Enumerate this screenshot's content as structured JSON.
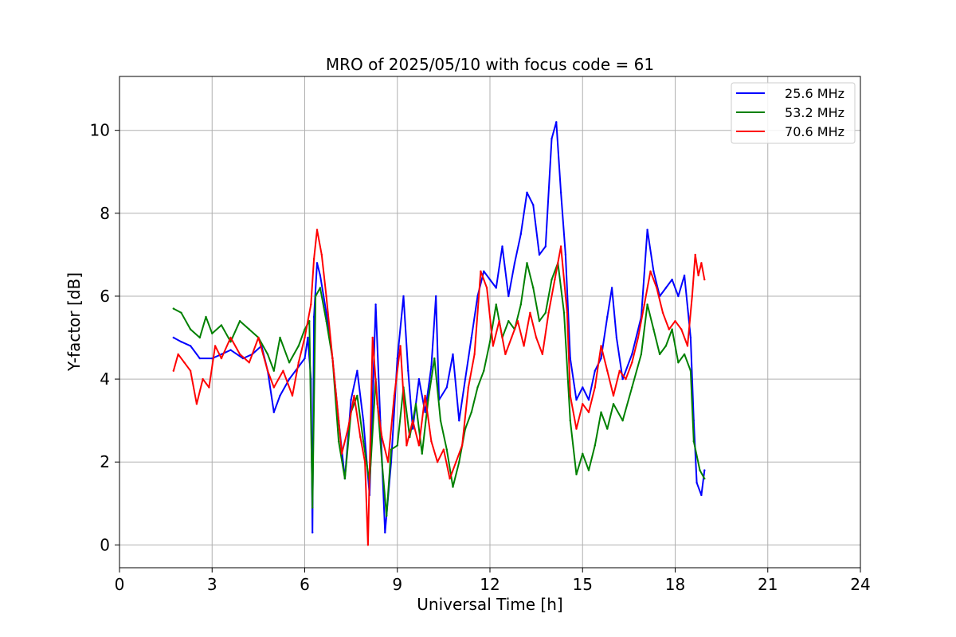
{
  "chart_data": {
    "type": "line",
    "title": "MRO of 2025/05/10 with focus code = 61",
    "xlabel": "Universal Time [h]",
    "ylabel": "Y-factor [dB]",
    "xlim": [
      0,
      24
    ],
    "ylim": [
      -0.55,
      11.3
    ],
    "xticks": [
      0,
      3,
      6,
      9,
      12,
      15,
      18,
      21,
      24
    ],
    "yticks": [
      0,
      2,
      4,
      6,
      8,
      10
    ],
    "grid": true,
    "legend_position": "top-right",
    "series": [
      {
        "name": "25.6 MHz",
        "color": "#0000ff",
        "points": [
          [
            1.75,
            5.0
          ],
          [
            2.0,
            4.9
          ],
          [
            2.3,
            4.8
          ],
          [
            2.6,
            4.5
          ],
          [
            3.0,
            4.5
          ],
          [
            3.3,
            4.6
          ],
          [
            3.6,
            4.7
          ],
          [
            4.0,
            4.5
          ],
          [
            4.3,
            4.6
          ],
          [
            4.6,
            4.8
          ],
          [
            4.8,
            4.2
          ],
          [
            5.0,
            3.2
          ],
          [
            5.2,
            3.6
          ],
          [
            5.5,
            4.0
          ],
          [
            5.8,
            4.3
          ],
          [
            6.0,
            4.5
          ],
          [
            6.1,
            5.0
          ],
          [
            6.2,
            4.0
          ],
          [
            6.25,
            0.3
          ],
          [
            6.3,
            5.5
          ],
          [
            6.4,
            6.8
          ],
          [
            6.5,
            6.5
          ],
          [
            6.7,
            5.6
          ],
          [
            6.9,
            4.5
          ],
          [
            7.1,
            3.0
          ],
          [
            7.3,
            1.6
          ],
          [
            7.5,
            3.5
          ],
          [
            7.7,
            4.2
          ],
          [
            7.9,
            3.0
          ],
          [
            8.1,
            1.2
          ],
          [
            8.3,
            5.8
          ],
          [
            8.45,
            3.0
          ],
          [
            8.6,
            0.3
          ],
          [
            8.8,
            2.0
          ],
          [
            9.0,
            4.5
          ],
          [
            9.2,
            6.0
          ],
          [
            9.35,
            4.2
          ],
          [
            9.5,
            2.8
          ],
          [
            9.7,
            4.0
          ],
          [
            9.9,
            3.2
          ],
          [
            10.1,
            4.3
          ],
          [
            10.25,
            6.0
          ],
          [
            10.35,
            3.5
          ],
          [
            10.6,
            3.8
          ],
          [
            10.8,
            4.6
          ],
          [
            11.0,
            3.0
          ],
          [
            11.2,
            4.0
          ],
          [
            11.4,
            5.0
          ],
          [
            11.6,
            6.0
          ],
          [
            11.8,
            6.6
          ],
          [
            12.0,
            6.4
          ],
          [
            12.2,
            6.2
          ],
          [
            12.4,
            7.2
          ],
          [
            12.6,
            6.0
          ],
          [
            12.8,
            6.8
          ],
          [
            13.0,
            7.5
          ],
          [
            13.2,
            8.5
          ],
          [
            13.4,
            8.2
          ],
          [
            13.6,
            7.0
          ],
          [
            13.8,
            7.2
          ],
          [
            14.0,
            9.8
          ],
          [
            14.15,
            10.2
          ],
          [
            14.3,
            8.5
          ],
          [
            14.45,
            7.0
          ],
          [
            14.6,
            4.5
          ],
          [
            14.8,
            3.5
          ],
          [
            15.0,
            3.8
          ],
          [
            15.2,
            3.5
          ],
          [
            15.4,
            4.2
          ],
          [
            15.6,
            4.5
          ],
          [
            15.8,
            5.5
          ],
          [
            15.95,
            6.2
          ],
          [
            16.1,
            5.0
          ],
          [
            16.3,
            4.0
          ],
          [
            16.6,
            4.6
          ],
          [
            16.9,
            5.5
          ],
          [
            17.1,
            7.6
          ],
          [
            17.3,
            6.6
          ],
          [
            17.5,
            6.0
          ],
          [
            17.7,
            6.2
          ],
          [
            17.9,
            6.4
          ],
          [
            18.1,
            6.0
          ],
          [
            18.3,
            6.5
          ],
          [
            18.5,
            5.0
          ],
          [
            18.6,
            3.0
          ],
          [
            18.7,
            1.5
          ],
          [
            18.85,
            1.2
          ],
          [
            18.95,
            1.8
          ]
        ]
      },
      {
        "name": "53.2 MHz",
        "color": "#008000",
        "points": [
          [
            1.75,
            5.7
          ],
          [
            2.0,
            5.6
          ],
          [
            2.3,
            5.2
          ],
          [
            2.6,
            5.0
          ],
          [
            2.8,
            5.5
          ],
          [
            3.0,
            5.1
          ],
          [
            3.3,
            5.3
          ],
          [
            3.6,
            4.9
          ],
          [
            3.9,
            5.4
          ],
          [
            4.2,
            5.2
          ],
          [
            4.5,
            5.0
          ],
          [
            4.8,
            4.6
          ],
          [
            5.0,
            4.2
          ],
          [
            5.2,
            5.0
          ],
          [
            5.5,
            4.4
          ],
          [
            5.8,
            4.8
          ],
          [
            6.0,
            5.2
          ],
          [
            6.15,
            5.4
          ],
          [
            6.25,
            0.9
          ],
          [
            6.35,
            6.0
          ],
          [
            6.5,
            6.2
          ],
          [
            6.7,
            5.4
          ],
          [
            6.9,
            4.5
          ],
          [
            7.1,
            2.5
          ],
          [
            7.3,
            1.6
          ],
          [
            7.5,
            3.2
          ],
          [
            7.7,
            3.6
          ],
          [
            7.9,
            2.5
          ],
          [
            8.1,
            1.5
          ],
          [
            8.3,
            4.0
          ],
          [
            8.5,
            2.0
          ],
          [
            8.65,
            0.7
          ],
          [
            8.8,
            2.3
          ],
          [
            9.0,
            2.4
          ],
          [
            9.2,
            3.8
          ],
          [
            9.4,
            2.6
          ],
          [
            9.6,
            3.4
          ],
          [
            9.8,
            2.2
          ],
          [
            10.0,
            3.5
          ],
          [
            10.2,
            4.5
          ],
          [
            10.4,
            3.0
          ],
          [
            10.6,
            2.3
          ],
          [
            10.8,
            1.4
          ],
          [
            11.0,
            2.0
          ],
          [
            11.2,
            2.8
          ],
          [
            11.4,
            3.2
          ],
          [
            11.6,
            3.8
          ],
          [
            11.8,
            4.2
          ],
          [
            12.0,
            4.9
          ],
          [
            12.2,
            5.8
          ],
          [
            12.4,
            5.0
          ],
          [
            12.6,
            5.4
          ],
          [
            12.8,
            5.2
          ],
          [
            13.0,
            5.8
          ],
          [
            13.2,
            6.8
          ],
          [
            13.4,
            6.2
          ],
          [
            13.6,
            5.4
          ],
          [
            13.8,
            5.6
          ],
          [
            14.0,
            6.4
          ],
          [
            14.2,
            6.8
          ],
          [
            14.4,
            5.6
          ],
          [
            14.6,
            3.0
          ],
          [
            14.8,
            1.7
          ],
          [
            15.0,
            2.2
          ],
          [
            15.2,
            1.8
          ],
          [
            15.4,
            2.4
          ],
          [
            15.6,
            3.2
          ],
          [
            15.8,
            2.8
          ],
          [
            16.0,
            3.4
          ],
          [
            16.3,
            3.0
          ],
          [
            16.6,
            3.8
          ],
          [
            16.9,
            4.6
          ],
          [
            17.1,
            5.8
          ],
          [
            17.3,
            5.2
          ],
          [
            17.5,
            4.6
          ],
          [
            17.7,
            4.8
          ],
          [
            17.9,
            5.2
          ],
          [
            18.1,
            4.4
          ],
          [
            18.3,
            4.6
          ],
          [
            18.5,
            4.2
          ],
          [
            18.6,
            2.5
          ],
          [
            18.8,
            1.8
          ],
          [
            18.95,
            1.6
          ]
        ]
      },
      {
        "name": "70.6 MHz",
        "color": "#ff0000",
        "points": [
          [
            1.75,
            4.2
          ],
          [
            1.9,
            4.6
          ],
          [
            2.1,
            4.4
          ],
          [
            2.3,
            4.2
          ],
          [
            2.5,
            3.4
          ],
          [
            2.7,
            4.0
          ],
          [
            2.9,
            3.8
          ],
          [
            3.1,
            4.8
          ],
          [
            3.3,
            4.5
          ],
          [
            3.6,
            5.0
          ],
          [
            3.9,
            4.6
          ],
          [
            4.2,
            4.4
          ],
          [
            4.5,
            5.0
          ],
          [
            4.8,
            4.2
          ],
          [
            5.0,
            3.8
          ],
          [
            5.3,
            4.2
          ],
          [
            5.6,
            3.6
          ],
          [
            5.8,
            4.4
          ],
          [
            6.0,
            5.0
          ],
          [
            6.2,
            5.8
          ],
          [
            6.3,
            6.9
          ],
          [
            6.4,
            7.6
          ],
          [
            6.55,
            7.0
          ],
          [
            6.7,
            6.0
          ],
          [
            6.9,
            4.5
          ],
          [
            7.1,
            3.0
          ],
          [
            7.2,
            2.2
          ],
          [
            7.4,
            2.8
          ],
          [
            7.6,
            3.6
          ],
          [
            7.8,
            2.6
          ],
          [
            7.95,
            2.0
          ],
          [
            8.05,
            0.0
          ],
          [
            8.2,
            5.0
          ],
          [
            8.35,
            3.4
          ],
          [
            8.5,
            2.6
          ],
          [
            8.7,
            2.0
          ],
          [
            8.9,
            3.6
          ],
          [
            9.1,
            4.8
          ],
          [
            9.3,
            2.4
          ],
          [
            9.5,
            3.0
          ],
          [
            9.7,
            2.4
          ],
          [
            9.9,
            3.6
          ],
          [
            10.1,
            2.5
          ],
          [
            10.3,
            2.0
          ],
          [
            10.5,
            2.3
          ],
          [
            10.7,
            1.6
          ],
          [
            10.9,
            2.0
          ],
          [
            11.1,
            2.4
          ],
          [
            11.3,
            3.8
          ],
          [
            11.5,
            4.6
          ],
          [
            11.7,
            6.6
          ],
          [
            11.9,
            6.2
          ],
          [
            12.1,
            4.8
          ],
          [
            12.3,
            5.4
          ],
          [
            12.5,
            4.6
          ],
          [
            12.7,
            5.0
          ],
          [
            12.9,
            5.4
          ],
          [
            13.1,
            4.8
          ],
          [
            13.3,
            5.6
          ],
          [
            13.5,
            5.0
          ],
          [
            13.7,
            4.6
          ],
          [
            13.9,
            5.6
          ],
          [
            14.1,
            6.4
          ],
          [
            14.3,
            7.2
          ],
          [
            14.5,
            5.6
          ],
          [
            14.6,
            3.6
          ],
          [
            14.8,
            2.8
          ],
          [
            15.0,
            3.4
          ],
          [
            15.2,
            3.2
          ],
          [
            15.4,
            3.8
          ],
          [
            15.6,
            4.8
          ],
          [
            15.8,
            4.2
          ],
          [
            16.0,
            3.6
          ],
          [
            16.2,
            4.2
          ],
          [
            16.4,
            4.0
          ],
          [
            16.6,
            4.4
          ],
          [
            16.8,
            5.0
          ],
          [
            17.0,
            5.8
          ],
          [
            17.2,
            6.6
          ],
          [
            17.4,
            6.2
          ],
          [
            17.6,
            5.6
          ],
          [
            17.8,
            5.2
          ],
          [
            18.0,
            5.4
          ],
          [
            18.2,
            5.2
          ],
          [
            18.4,
            4.8
          ],
          [
            18.55,
            6.0
          ],
          [
            18.65,
            7.0
          ],
          [
            18.75,
            6.5
          ],
          [
            18.85,
            6.8
          ],
          [
            18.95,
            6.4
          ]
        ]
      }
    ]
  }
}
